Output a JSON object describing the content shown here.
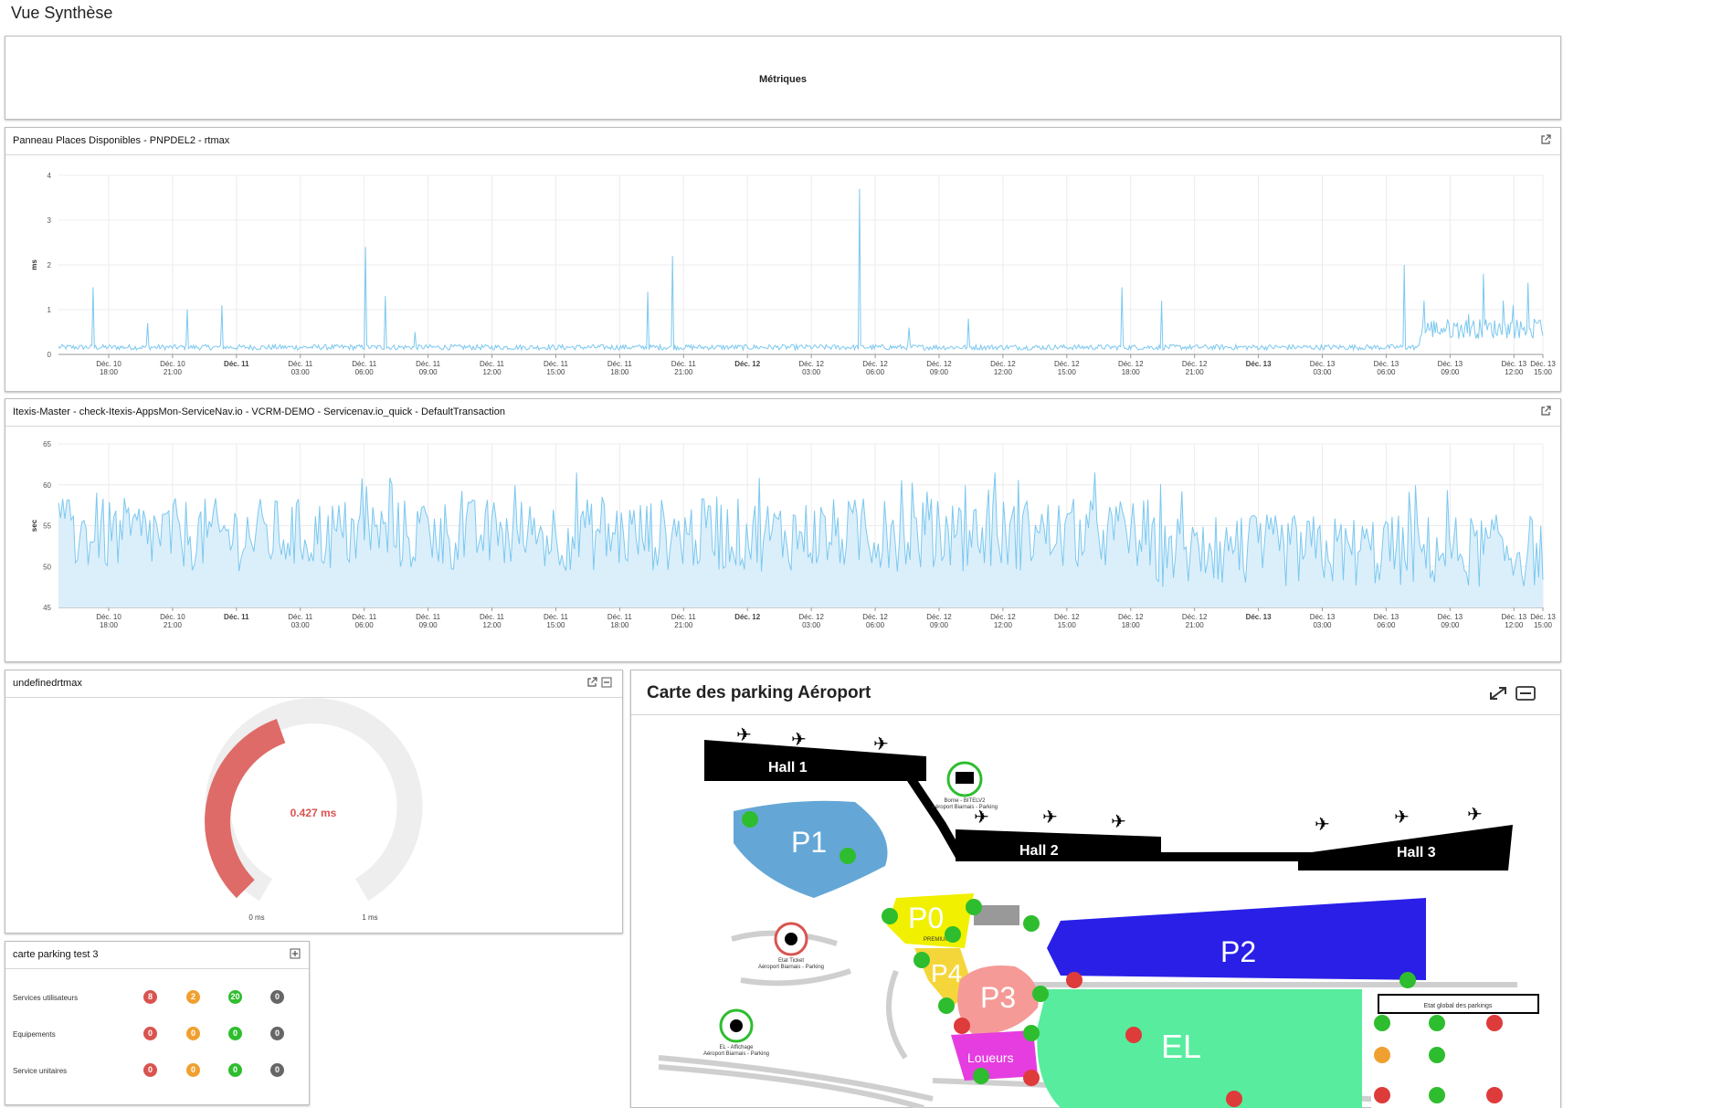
{
  "page": {
    "title": "Vue Synthèse"
  },
  "metrics_panel": {
    "label": "Métriques"
  },
  "chart1": {
    "title": "Panneau Places Disponibles - PNPDEL2 - rtmax",
    "chart_data": {
      "type": "line",
      "ylabel": "ms",
      "ylim": [
        0,
        4
      ],
      "yticks": [
        "0",
        "1",
        "2",
        "3",
        "4"
      ],
      "xticks": [
        {
          "day": "Déc. 10",
          "time": "18:00",
          "bold": false
        },
        {
          "day": "Déc. 10",
          "time": "21:00",
          "bold": false
        },
        {
          "day": "Déc. 11",
          "time": "",
          "bold": true
        },
        {
          "day": "Déc. 11",
          "time": "03:00",
          "bold": false
        },
        {
          "day": "Déc. 11",
          "time": "06:00",
          "bold": false
        },
        {
          "day": "Déc. 11",
          "time": "09:00",
          "bold": false
        },
        {
          "day": "Déc. 11",
          "time": "12:00",
          "bold": false
        },
        {
          "day": "Déc. 11",
          "time": "15:00",
          "bold": false
        },
        {
          "day": "Déc. 11",
          "time": "18:00",
          "bold": false
        },
        {
          "day": "Déc. 11",
          "time": "21:00",
          "bold": false
        },
        {
          "day": "Déc. 12",
          "time": "",
          "bold": true
        },
        {
          "day": "Déc. 12",
          "time": "03:00",
          "bold": false
        },
        {
          "day": "Déc. 12",
          "time": "06:00",
          "bold": false
        },
        {
          "day": "Déc. 12",
          "time": "09:00",
          "bold": false
        },
        {
          "day": "Déc. 12",
          "time": "12:00",
          "bold": false
        },
        {
          "day": "Déc. 12",
          "time": "15:00",
          "bold": false
        },
        {
          "day": "Déc. 12",
          "time": "18:00",
          "bold": false
        },
        {
          "day": "Déc. 12",
          "time": "21:00",
          "bold": false
        },
        {
          "day": "Déc. 13",
          "time": "",
          "bold": true
        },
        {
          "day": "Déc. 13",
          "time": "03:00",
          "bold": false
        },
        {
          "day": "Déc. 13",
          "time": "06:00",
          "bold": false
        },
        {
          "day": "Déc. 13",
          "time": "09:00",
          "bold": false
        },
        {
          "day": "Déc. 13",
          "time": "12:00",
          "bold": false
        },
        {
          "day": "Déc. 13",
          "time": "15:00",
          "bold": false
        }
      ],
      "baseline": 0.1,
      "spikes": [
        [
          0.7,
          1.5
        ],
        [
          1.8,
          0.7
        ],
        [
          2.6,
          1.0
        ],
        [
          3.3,
          1.1
        ],
        [
          6.2,
          2.4
        ],
        [
          6.6,
          1.3
        ],
        [
          7.2,
          0.5
        ],
        [
          11.9,
          1.4
        ],
        [
          12.4,
          2.2
        ],
        [
          16.2,
          3.7
        ],
        [
          17.2,
          0.6
        ],
        [
          18.4,
          0.8
        ],
        [
          21.5,
          1.5
        ],
        [
          22.3,
          1.2
        ],
        [
          27.2,
          2.0
        ],
        [
          27.6,
          1.2
        ],
        [
          28.5,
          0.9
        ],
        [
          28.8,
          1.8
        ],
        [
          29.2,
          1.2
        ],
        [
          29.4,
          1.1
        ],
        [
          29.7,
          1.6
        ],
        [
          29.9,
          0.7
        ]
      ],
      "color": "#7cc8ef"
    }
  },
  "chart2": {
    "title": "Itexis-Master - check-Itexis-AppsMon-ServiceNav.io - VCRM-DEMO - Servicenav.io_quick - DefaultTransaction",
    "chart_data": {
      "type": "area",
      "ylabel": "sec",
      "ylim": [
        45,
        65
      ],
      "yticks": [
        "45",
        "50",
        "55",
        "60",
        "65"
      ],
      "baseline": 53,
      "color": "#7cc8ef",
      "fill": "#dbeffb"
    }
  },
  "gauge": {
    "title": "undefinedrtmax",
    "value_label": "0.427 ms",
    "value": 0.427,
    "min_label": "0 ms",
    "max_label": "1 ms",
    "color": "#de6b68"
  },
  "parking_test": {
    "title": "carte parking test 3",
    "rows": [
      {
        "label": "Services utilisateurs",
        "counts": [
          "8",
          "2",
          "20",
          "0"
        ]
      },
      {
        "label": "Equipements",
        "counts": [
          "0",
          "0",
          "0",
          "0"
        ]
      },
      {
        "label": "Service unitaires",
        "counts": [
          "0",
          "0",
          "0",
          "0"
        ]
      }
    ],
    "colors": [
      "#d9534f",
      "#f0a030",
      "#2ebd2e",
      "#666666"
    ]
  },
  "map": {
    "title": "Carte des parking Aéroport",
    "halls": [
      "Hall 1",
      "Hall 2",
      "Hall 3"
    ],
    "parkings": [
      "P1",
      "P0",
      "P4",
      "P3",
      "P2",
      "EL",
      "Loueurs"
    ],
    "legend_title": "Etat global des parkings",
    "small_labels": [
      "Borne - BITELV2",
      "Aéroport Biarnais - Parking",
      "Etat Ticket",
      "Aéroport Biarnais - Parking",
      "EL - Affichage",
      "Aéroport Biarnais - Parking",
      "PREMIUM"
    ]
  }
}
